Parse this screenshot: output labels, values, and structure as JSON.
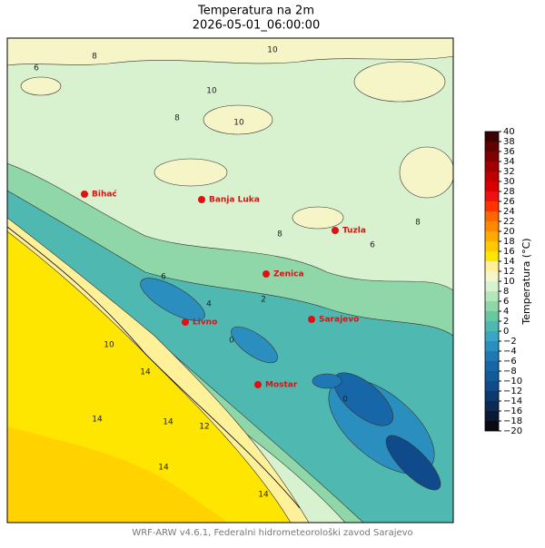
{
  "header": {
    "title": "Temperatura na 2m",
    "subtitle": "2026-05-01_06:00:00"
  },
  "footer": "WRF-ARW v4.6.1, Federalni hidrometeorološki zavod Sarajevo",
  "cities": [
    "Bihać",
    "Banja Luka",
    "Tuzla",
    "Zenica",
    "Sarajevo",
    "Livno",
    "Mostar"
  ],
  "contour_labels": [
    10,
    8,
    10,
    10,
    8,
    6,
    8,
    6,
    4,
    2,
    0,
    10,
    14,
    12,
    14,
    14,
    14,
    14,
    6,
    8,
    0
  ],
  "colorbar": {
    "label": "Temperatura (°C)",
    "ticks": [
      {
        "value": -20,
        "label": "−20"
      },
      {
        "value": -18,
        "label": "−18"
      },
      {
        "value": -16,
        "label": "−16"
      },
      {
        "value": -14,
        "label": "−14"
      },
      {
        "value": -12,
        "label": "−12"
      },
      {
        "value": -10,
        "label": "−10"
      },
      {
        "value": -8,
        "label": "−8"
      },
      {
        "value": -6,
        "label": "−6"
      },
      {
        "value": -4,
        "label": "−4"
      },
      {
        "value": -2,
        "label": "−2"
      },
      0,
      2,
      4,
      6,
      8,
      10,
      12,
      14,
      16,
      18,
      20,
      22,
      24,
      26,
      28,
      30,
      32,
      34,
      36,
      38,
      40
    ],
    "colors": [
      "#0a0a14",
      "#0b1a33",
      "#0c2a52",
      "#0d3a6e",
      "#0f4b8a",
      "#135a9a",
      "#1766a8",
      "#1f78b4",
      "#2a8fbf",
      "#3aa5c4",
      "#4fb8b0",
      "#6ac8a0",
      "#8fd6a8",
      "#b5e5bc",
      "#d8f2cf",
      "#f5f5c8",
      "#fff09a",
      "#ffe600",
      "#ffc800",
      "#ffaa00",
      "#ff8800",
      "#ff6600",
      "#ff3300",
      "#f01010",
      "#d80000",
      "#c00000",
      "#a00000",
      "#800000",
      "#600000",
      "#3c0000"
    ]
  }
}
